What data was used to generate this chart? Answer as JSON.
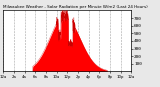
{
  "title": "Milwaukee Weather - Solar Radiation per Minute W/m2 (Last 24 Hours)",
  "bg_color": "#e8e8e8",
  "plot_bg_color": "#ffffff",
  "fill_color": "#ff0000",
  "line_color": "#cc0000",
  "grid_color": "#999999",
  "ylim": [
    0,
    800
  ],
  "yticks": [
    100,
    200,
    300,
    400,
    500,
    600,
    700
  ],
  "num_points": 1440,
  "peak_hour": 11.5,
  "peak_value": 730,
  "start_hour": 5.5,
  "end_hour": 19.5,
  "xtick_hours": [
    0,
    2,
    4,
    6,
    8,
    10,
    12,
    14,
    16,
    18,
    20,
    22,
    24
  ]
}
